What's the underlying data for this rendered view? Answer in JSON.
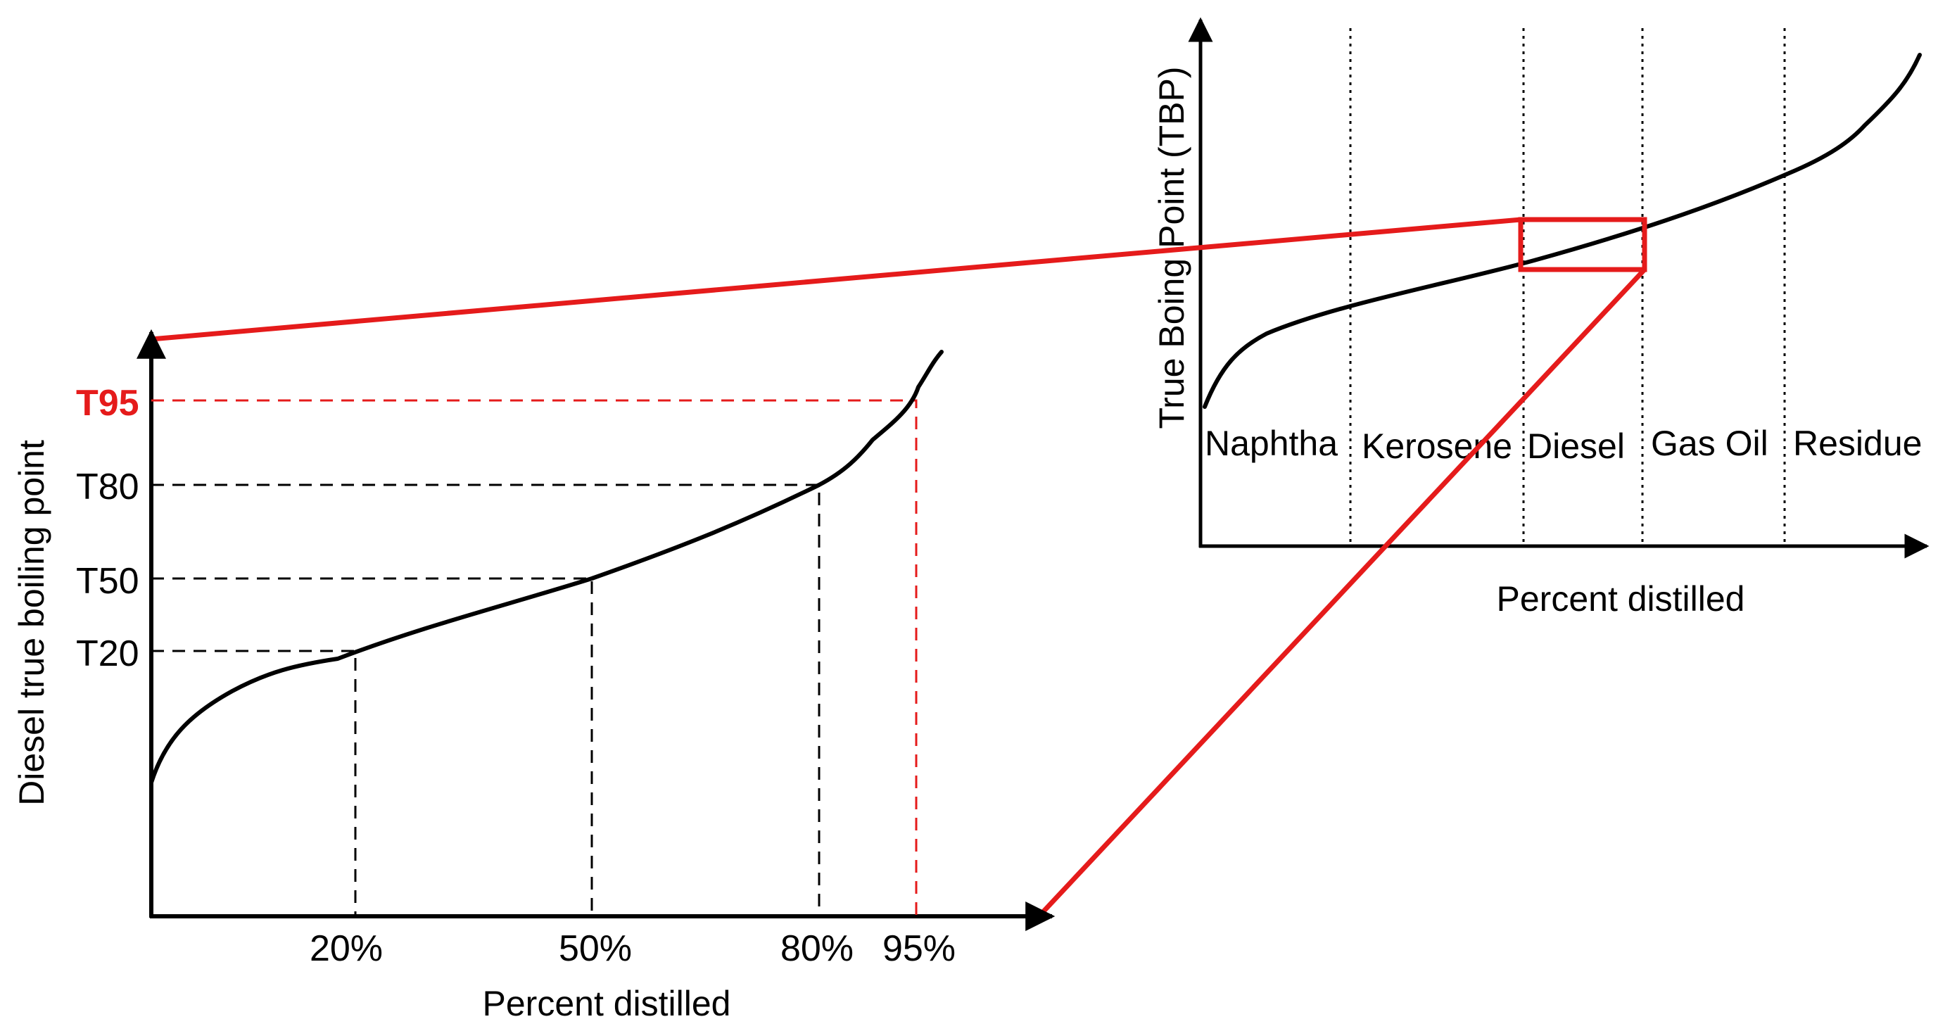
{
  "colors": {
    "curve": "#000000",
    "highlight": "#e51b1b",
    "t95_label": "#e51b1b",
    "guides": "#000000"
  },
  "overview": {
    "y_axis_label": "True Boing Point (TBP)",
    "x_axis_label": "Percent distilled",
    "fractions": [
      "Naphtha",
      "Kerosene",
      "Diesel",
      "Gas Oil",
      "Residue"
    ]
  },
  "detail": {
    "y_axis_label": "Diesel true boiling point",
    "x_axis_label": "Percent distilled",
    "y_ticks": [
      "T95",
      "T80",
      "T50",
      "T20"
    ],
    "x_ticks": [
      "20%",
      "50%",
      "80%",
      "95%"
    ]
  }
}
